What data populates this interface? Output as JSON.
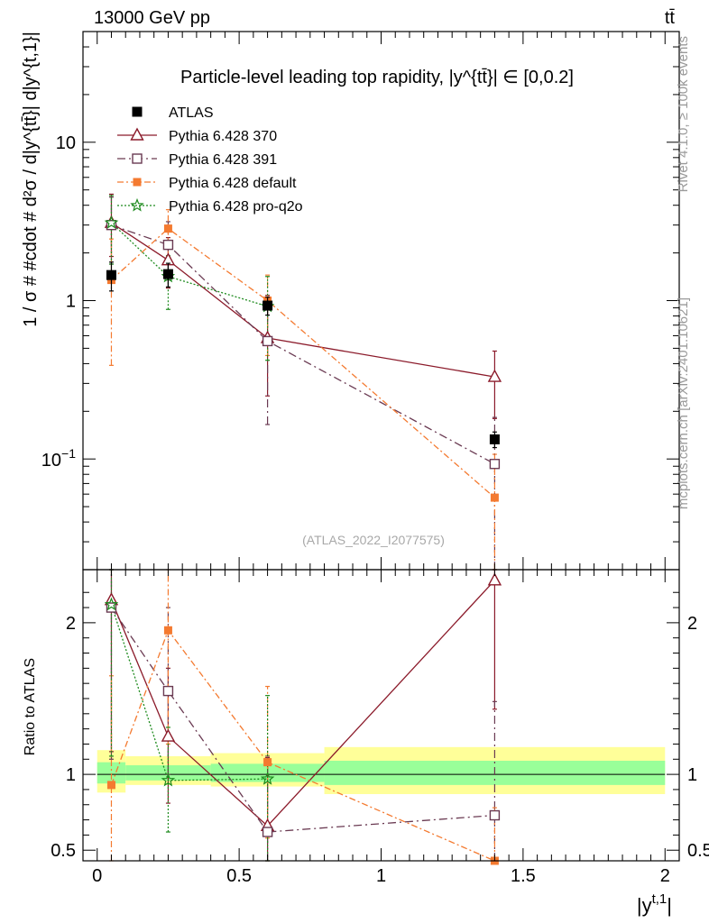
{
  "header": {
    "energy_label": "13000 GeV pp",
    "process_label": "tt̄"
  },
  "side_labels": {
    "rivet": "Rivet 4.1.0, ≥ 100k events",
    "source": "mcplots.cern.ch [arXiv:2401.10621]"
  },
  "colors": {
    "data": "#000000",
    "p370": "#8b1a2a",
    "p391": "#6a3a52",
    "default": "#f47a30",
    "proq2o": "#1d8a1d",
    "band_inner": "#99ff99",
    "band_outer": "#ffff99"
  },
  "chart_data": [
    {
      "type": "line",
      "panel": "main",
      "title": "Particle-level leading top rapidity, |y^{tt̄}| ∈ [0,0.2]",
      "ylabel": "1 / σ # #cdot # d²σ / d|y^{tt̄}| d|y^{t,1}|",
      "yscale": "log",
      "ylim": [
        0.02,
        50
      ],
      "xlim": [
        -0.05,
        2.05
      ],
      "y_tick_labels": [
        "10",
        "1",
        "10^-1"
      ],
      "watermark": "(ATLAS_2022_I2077575)",
      "legend_position": "top-left",
      "x": [
        0.05,
        0.25,
        0.6,
        1.4
      ],
      "series": [
        {
          "name": "ATLAS",
          "values": [
            1.45,
            1.47,
            0.93,
            0.133
          ],
          "err_lo": [
            0.3,
            0.25,
            0.12,
            0.015
          ],
          "err_hi": [
            0.3,
            0.25,
            0.12,
            0.015
          ]
        },
        {
          "name": "Pythia 6.428 370",
          "values": [
            3.1,
            1.8,
            0.58,
            0.33
          ],
          "err_lo": [
            1.2,
            0.6,
            0.33,
            0.15
          ],
          "err_hi": [
            1.6,
            0.7,
            0.5,
            0.15
          ]
        },
        {
          "name": "Pythia 6.428 391",
          "values": [
            3.0,
            2.25,
            0.555,
            0.093
          ],
          "err_lo": [
            1.3,
            0.9,
            0.39,
            0.085
          ],
          "err_hi": [
            1.5,
            0.9,
            0.5,
            0.09
          ]
        },
        {
          "name": "Pythia 6.428 default",
          "values": [
            1.35,
            2.85,
            1.0,
            0.057
          ],
          "err_lo": [
            0.96,
            1.1,
            0.55,
            0.055
          ],
          "err_hi": [
            1.1,
            0.9,
            0.45,
            0.05
          ]
        },
        {
          "name": "Pythia 6.428 pro-q2o",
          "values": [
            3.1,
            1.42,
            0.92,
            null
          ],
          "err_lo": [
            1.4,
            0.54,
            0.5,
            null
          ],
          "err_hi": [
            1.5,
            0.5,
            0.5,
            null
          ]
        }
      ]
    },
    {
      "type": "line",
      "panel": "ratio",
      "ylabel": "Ratio to ATLAS",
      "xlabel": "|y^{t,1}|",
      "ylim": [
        0.43,
        2.35
      ],
      "y_ticks": [
        0.5,
        1,
        2
      ],
      "y_tick_labels": [
        "0.5",
        "1",
        "2"
      ],
      "x_ticks": [
        0,
        0.5,
        1,
        1.5,
        2
      ],
      "x_tick_labels": [
        "0",
        "0.5",
        "1",
        "1.5",
        "2"
      ],
      "x": [
        0.05,
        0.25,
        0.6,
        1.4
      ],
      "bands": [
        {
          "x_lo": 0.0,
          "x_hi": 0.1,
          "inner": [
            0.94,
            1.08
          ],
          "outer": [
            0.88,
            1.16
          ]
        },
        {
          "x_lo": 0.1,
          "x_hi": 0.4,
          "inner": [
            0.96,
            1.06
          ],
          "outer": [
            0.93,
            1.12
          ]
        },
        {
          "x_lo": 0.4,
          "x_hi": 0.8,
          "inner": [
            0.95,
            1.07
          ],
          "outer": [
            0.92,
            1.14
          ]
        },
        {
          "x_lo": 0.8,
          "x_hi": 2.0,
          "inner": [
            0.93,
            1.09
          ],
          "outer": [
            0.87,
            1.18
          ]
        }
      ],
      "series": [
        {
          "name": "Pythia 6.428 370",
          "values": [
            2.15,
            1.25,
            0.66,
            2.28
          ],
          "err_lo": [
            1.0,
            0.44,
            0.38,
            0.85
          ],
          "err_hi": [
            1.15,
            0.45,
            0.45,
            1.0
          ]
        },
        {
          "name": "Pythia 6.428 391",
          "values": [
            2.1,
            1.55,
            0.62,
            0.73
          ],
          "err_lo": [
            1.0,
            0.55,
            0.4,
            0.45
          ],
          "err_hi": [
            1.1,
            0.55,
            0.5,
            0.75
          ]
        },
        {
          "name": "Pythia 6.428 default",
          "values": [
            0.93,
            1.95,
            1.08,
            0.38
          ],
          "err_lo": [
            0.56,
            0.75,
            0.5,
            0.38
          ],
          "err_hi": [
            0.72,
            0.4,
            0.5,
            0.4
          ]
        },
        {
          "name": "Pythia 6.428 pro-q2o",
          "values": [
            2.12,
            0.96,
            0.97,
            null
          ],
          "err_lo": [
            1.0,
            0.34,
            0.55,
            null
          ],
          "err_hi": [
            1.1,
            0.35,
            0.55,
            null
          ]
        }
      ]
    }
  ]
}
